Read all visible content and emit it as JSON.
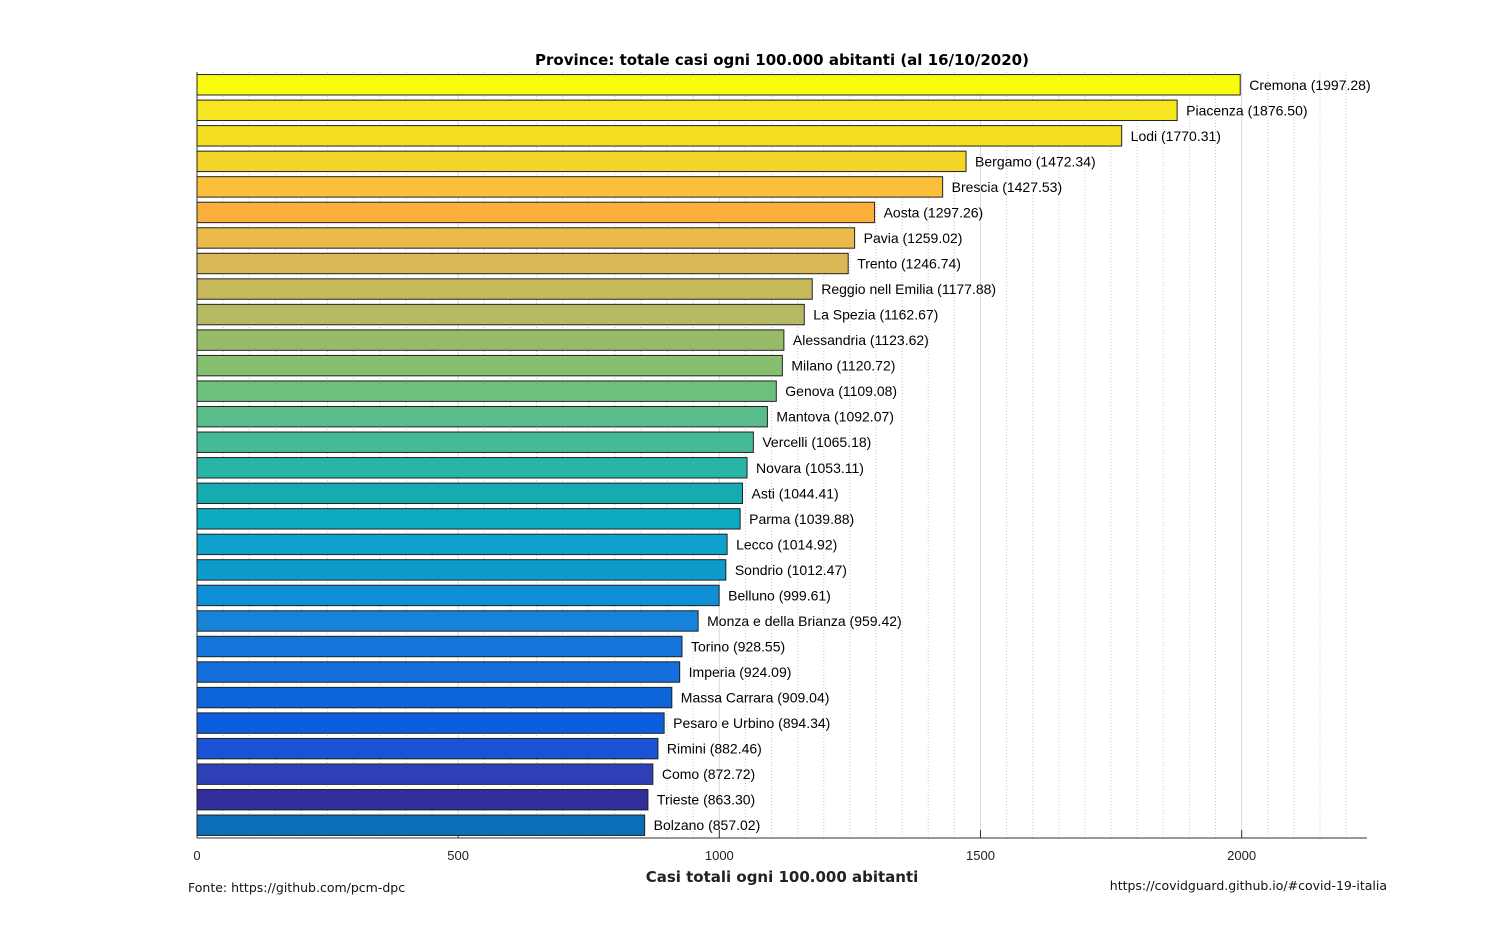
{
  "chart_data": {
    "type": "bar",
    "orientation": "horizontal",
    "title": "Province: totale casi ogni 100.000 abitanti (al 16/10/2020)",
    "xlabel": "Casi totali ogni 100.000 abitanti",
    "ylabel": "",
    "xlim": [
      0,
      2240
    ],
    "xticks": [
      0,
      500,
      1000,
      1500,
      2000
    ],
    "grid": "vertical dotted",
    "categories": [
      "Cremona",
      "Piacenza",
      "Lodi",
      "Bergamo",
      "Brescia",
      "Aosta",
      "Pavia",
      "Trento",
      "Reggio nell Emilia",
      "La Spezia",
      "Alessandria",
      "Milano",
      "Genova",
      "Mantova",
      "Vercelli",
      "Novara",
      "Asti",
      "Parma",
      "Lecco",
      "Sondrio",
      "Belluno",
      "Monza e della Brianza",
      "Torino",
      "Imperia",
      "Massa Carrara",
      "Pesaro e Urbino",
      "Rimini",
      "Como",
      "Trieste",
      "Bolzano"
    ],
    "values": [
      1997.28,
      1876.5,
      1770.31,
      1472.34,
      1427.53,
      1297.26,
      1259.02,
      1246.74,
      1177.88,
      1162.67,
      1123.62,
      1120.72,
      1109.08,
      1092.07,
      1065.18,
      1053.11,
      1044.41,
      1039.88,
      1014.92,
      1012.47,
      999.61,
      959.42,
      928.55,
      924.09,
      909.04,
      894.34,
      882.46,
      872.72,
      863.3,
      857.02
    ],
    "bar_labels": [
      "Cremona (1997.28)",
      "Piacenza (1876.50)",
      "Lodi (1770.31)",
      "Bergamo (1472.34)",
      "Brescia (1427.53)",
      "Aosta (1297.26)",
      "Pavia (1259.02)",
      "Trento (1246.74)",
      "Reggio nell Emilia (1177.88)",
      "La Spezia (1162.67)",
      "Alessandria (1123.62)",
      "Milano (1120.72)",
      "Genova (1109.08)",
      "Mantova (1092.07)",
      "Vercelli (1065.18)",
      "Novara (1053.11)",
      "Asti (1044.41)",
      "Parma (1039.88)",
      "Lecco (1014.92)",
      "Sondrio (1012.47)",
      "Belluno (999.61)",
      "Monza e della Brianza (959.42)",
      "Torino (928.55)",
      "Imperia (924.09)",
      "Massa Carrara (909.04)",
      "Pesaro e Urbino (894.34)",
      "Rimini (882.46)",
      "Como (872.72)",
      "Trieste (863.30)",
      "Bolzano (857.02)"
    ],
    "colors": [
      "#f9fb0e",
      "#f6e61f",
      "#f4de22",
      "#f3d52a",
      "#fbbf3a",
      "#fbb03c",
      "#eaba4a",
      "#d9b856",
      "#c7b85c",
      "#b5ba62",
      "#98bb6a",
      "#86bf70",
      "#6cc07c",
      "#58bd8a",
      "#46ba97",
      "#28b5a6",
      "#16abb0",
      "#0caac0",
      "#0ea1cb",
      "#0b9ccb",
      "#0f8fd6",
      "#1682d8",
      "#1476db",
      "#146edb",
      "#0d64d9",
      "#0b5fde",
      "#1c52d4",
      "#2e40b8",
      "#31309a",
      "#0a6fb8"
    ]
  },
  "footer": {
    "source": "Fonte: https://github.com/pcm-dpc",
    "site": "https://covidguard.github.io/#covid-19-italia"
  }
}
